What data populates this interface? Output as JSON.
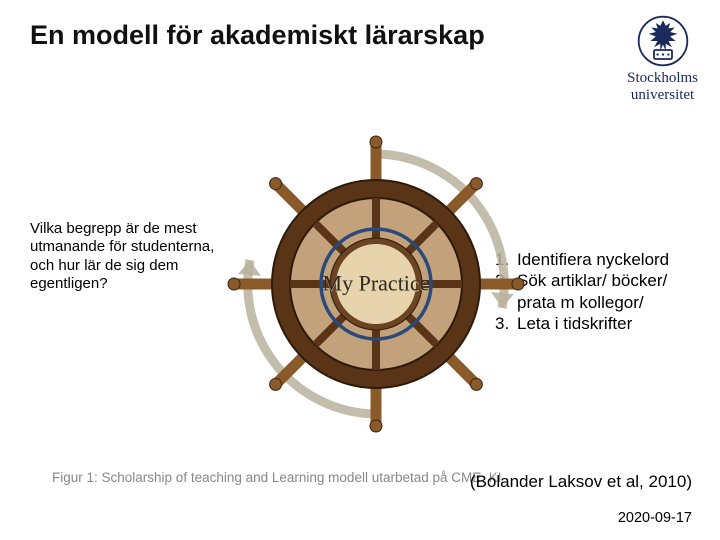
{
  "title": "En modell för akademiskt lärarskap",
  "logo": {
    "line1": "Stockholms",
    "line2": "universitet"
  },
  "left_paragraph": "Vilka begrepp är de mest utmanande för studenterna, och hur lär de sig dem egentligen?",
  "right_items": [
    "Identifiera nyckelord",
    "Sök artiklar/ böcker/ prata m kollegor/",
    "Leta i tidskrifter"
  ],
  "wheel": {
    "center_label": "My Practice",
    "spoke_count": 8,
    "rim_color": "#5a3416",
    "inner_color": "#c3a27b",
    "hub_color": "#6b4423",
    "handle_color": "#8a5a2b",
    "arc_color": "#b9b19e",
    "highlight_ring_color": "#294a7a"
  },
  "figure_caption": "Figur 1: Scholarship of teaching and Learning modell utarbetad på CME, KI",
  "citation": "(Bolander Laksov et al, 2010)",
  "date": "2020-09-17"
}
